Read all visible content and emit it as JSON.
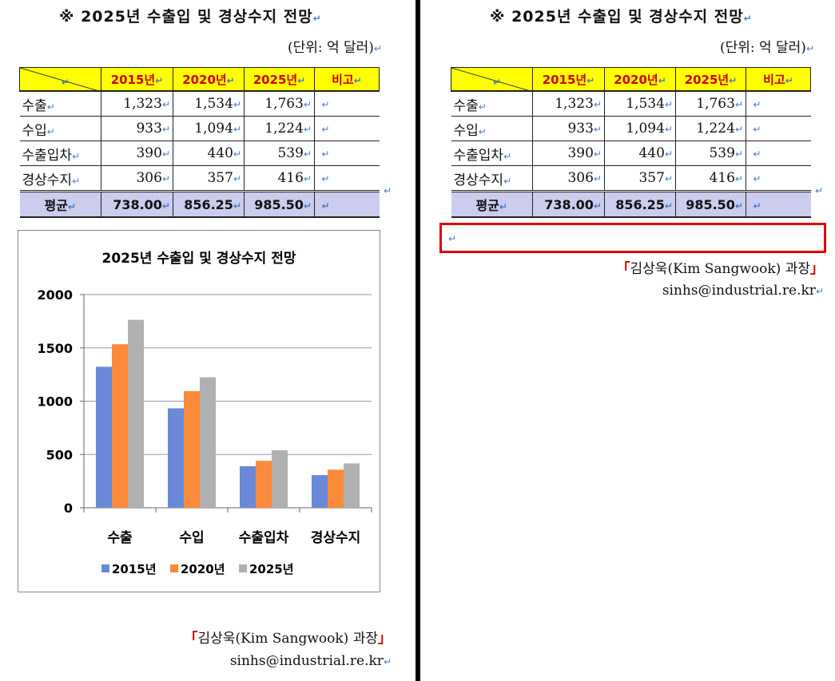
{
  "document": {
    "title": "※ 2025년 수출입 및 경상수지 전망",
    "unit": "(단위: 억 달러)",
    "para_mark": "↵",
    "table": {
      "headers": [
        "2015년",
        "2020년",
        "2025년",
        "비고"
      ],
      "rows": [
        {
          "label": "수출",
          "values": [
            "1,323",
            "1,534",
            "1,763"
          ]
        },
        {
          "label": "수입",
          "values": [
            "933",
            "1,094",
            "1,224"
          ]
        },
        {
          "label": "수출입차",
          "values": [
            "390",
            "440",
            "539"
          ]
        },
        {
          "label": "경상수지",
          "values": [
            "306",
            "357",
            "416"
          ]
        }
      ],
      "average": {
        "label": "평균",
        "values": [
          "738.00",
          "856.25",
          "985.50"
        ]
      }
    },
    "author_line": "김상욱(Kim Sangwook) 과장",
    "email": "sinhs@industrial.re.kr"
  },
  "chart_data": {
    "type": "bar",
    "title": "2025년 수출입 및 경상수지 전망",
    "categories": [
      "수출",
      "수입",
      "수출입차",
      "경상수지"
    ],
    "series": [
      {
        "name": "2015년",
        "values": [
          1323,
          933,
          390,
          306
        ],
        "color": "#6a8ad8"
      },
      {
        "name": "2020년",
        "values": [
          1534,
          1094,
          440,
          357
        ],
        "color": "#fb8a3a"
      },
      {
        "name": "2025년",
        "values": [
          1763,
          1224,
          539,
          416
        ],
        "color": "#b0b0b0"
      }
    ],
    "yticks": [
      "2000",
      "1500",
      "1000",
      "500",
      "0"
    ],
    "ylim": [
      0,
      2000
    ],
    "grid": true,
    "legend_position": "bottom"
  }
}
